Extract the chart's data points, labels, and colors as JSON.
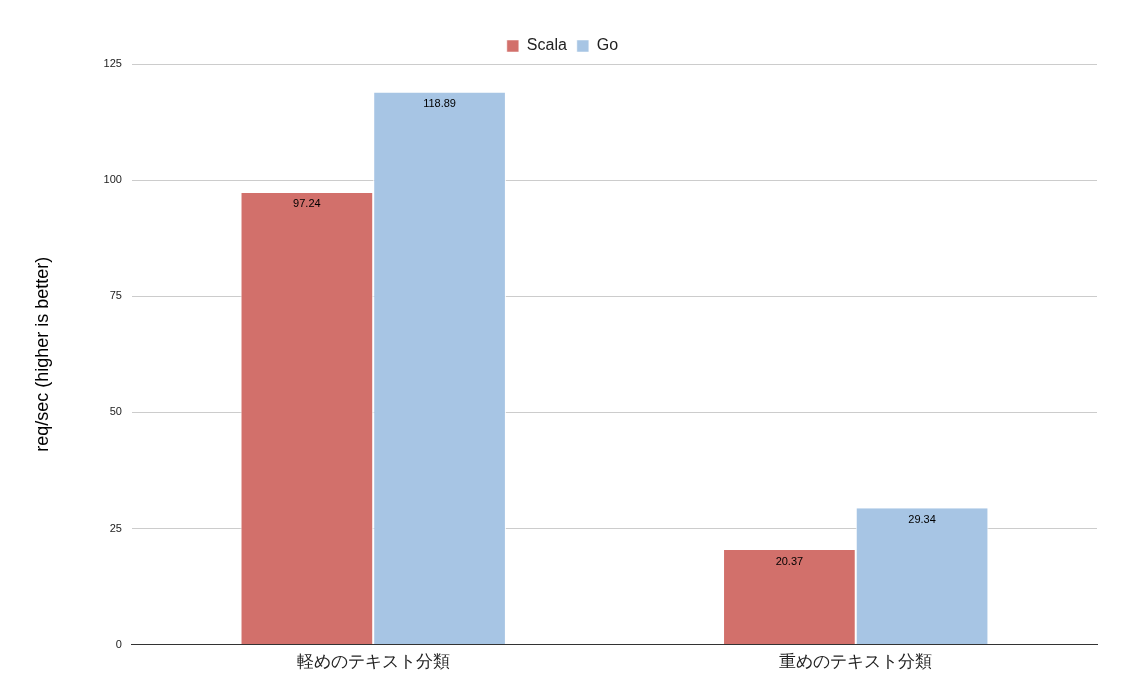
{
  "chart_data": {
    "type": "bar",
    "ylabel": "req/sec (higher is better)",
    "categories": [
      "軽めのテキスト分類",
      "重めのテキスト分類"
    ],
    "series": [
      {
        "name": "Scala",
        "color": "#d2706b",
        "values": [
          97.24,
          20.37
        ]
      },
      {
        "name": "Go",
        "color": "#a7c5e4",
        "values": [
          118.89,
          29.34
        ]
      }
    ],
    "ylim": [
      0,
      125
    ],
    "yticks": [
      0,
      25,
      50,
      75,
      100,
      125
    ],
    "grid": "y",
    "legend": "top",
    "data_labels": true
  }
}
